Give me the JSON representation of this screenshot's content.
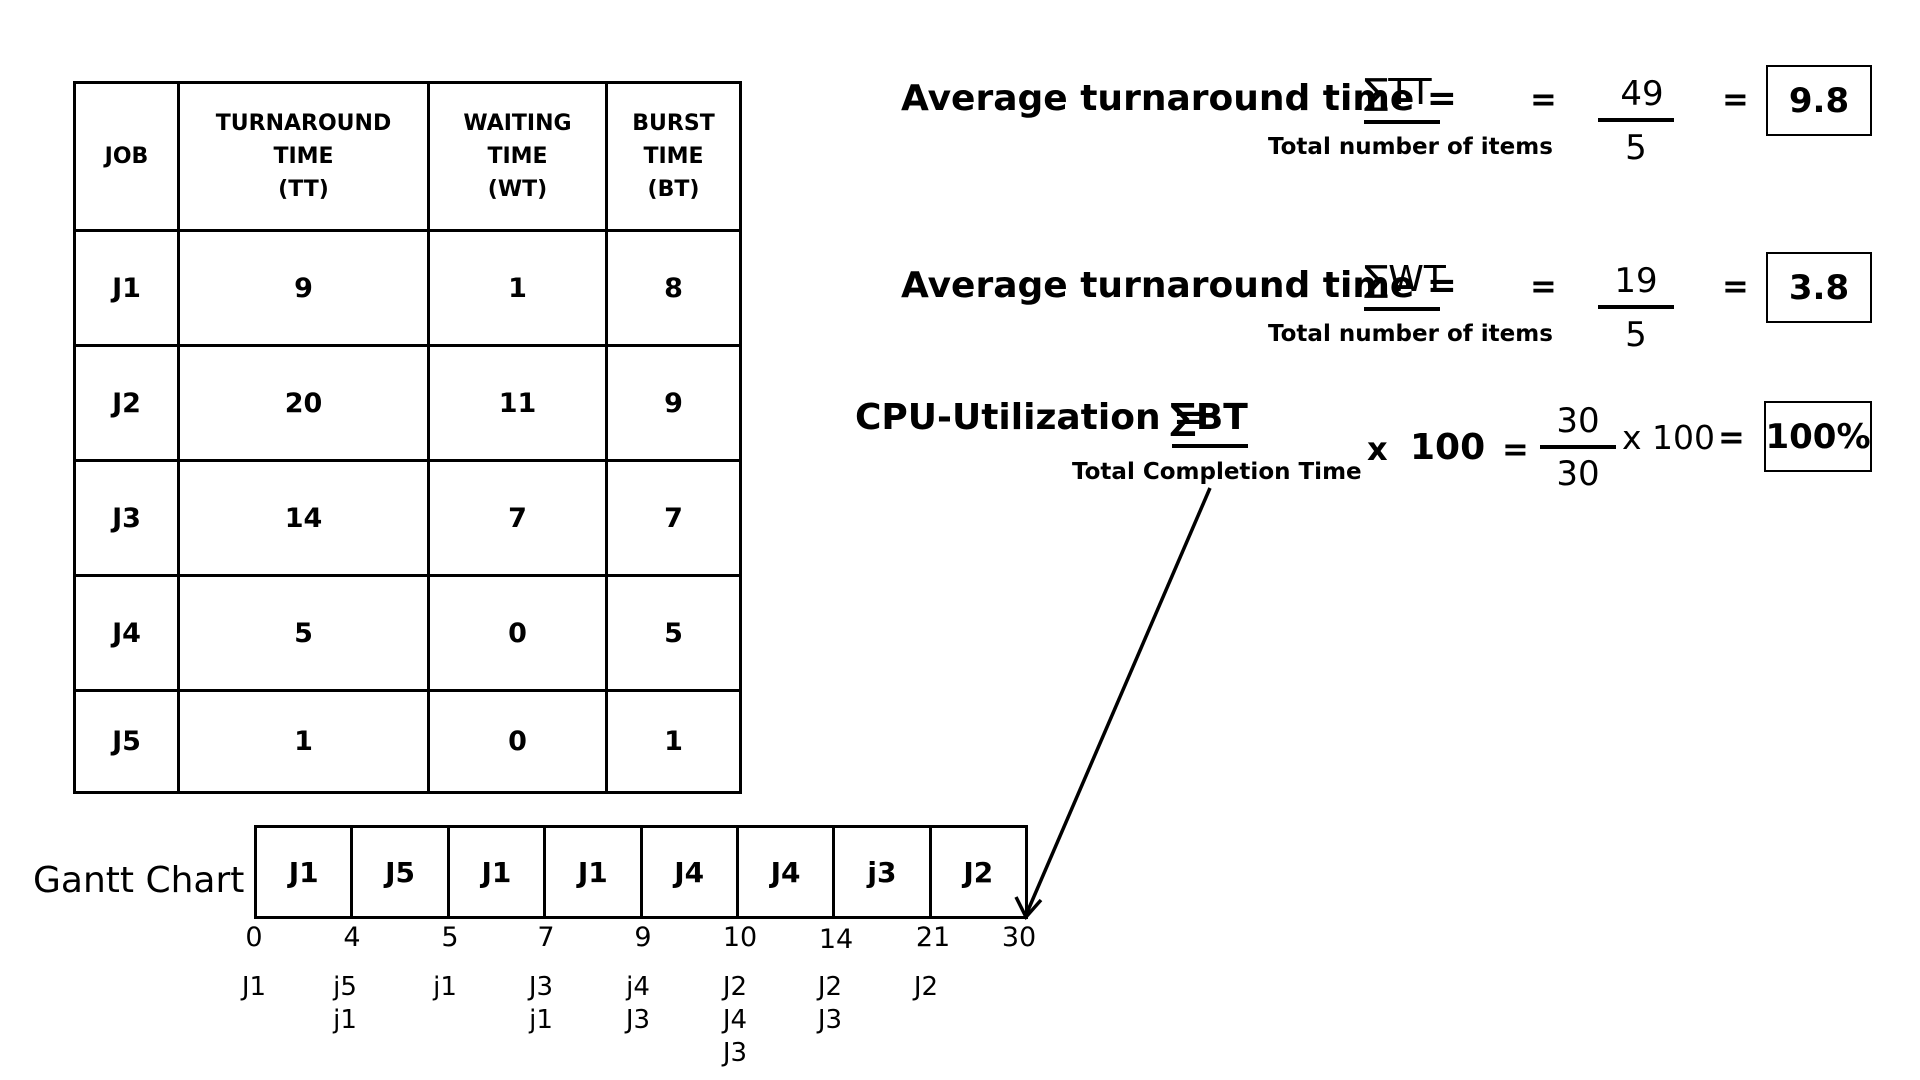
{
  "table": {
    "headers": [
      [
        "JOB"
      ],
      [
        "TURNAROUND",
        "TIME",
        "(TT)"
      ],
      [
        "WAITING",
        "TIME",
        "(WT)"
      ],
      [
        "BURST",
        "TIME",
        "(BT)"
      ]
    ],
    "rows": [
      [
        "J1",
        "9",
        "1",
        "8"
      ],
      [
        "J2",
        "20",
        "11",
        "9"
      ],
      [
        "J3",
        "14",
        "7",
        "7"
      ],
      [
        "J4",
        "5",
        "0",
        "5"
      ],
      [
        "J5",
        "1",
        "0",
        "1"
      ]
    ]
  },
  "formulas": {
    "tt": {
      "label": "Average turnaround time =",
      "sigma_term": "∑TT",
      "denominator_label": "Total number of items",
      "equals": "=",
      "numerator": "49",
      "denominator": "5",
      "equals2": "=",
      "result": "9.8"
    },
    "wt": {
      "label": "Average turnaround time =",
      "sigma_term": "∑WT",
      "denominator_label": "Total number of items",
      "equals": "=",
      "numerator": "19",
      "denominator": "5",
      "equals2": "=",
      "result": "3.8"
    },
    "cpu": {
      "label": "CPU-Utilization =",
      "sigma_term": "∑BT",
      "denominator_label": "Total Completion Time",
      "times": "x",
      "hundred": "100",
      "equals": "=",
      "numerator": "30",
      "denominator": "30",
      "times_100": "x 100",
      "equals2": "=",
      "result": "100%"
    }
  },
  "gantt": {
    "title": "Gantt Chart",
    "cells": [
      "J1",
      "J5",
      "J1",
      "J1",
      "J4",
      "J4",
      "j3",
      "J2"
    ],
    "ticks": [
      "0",
      "4",
      "5",
      "7",
      "9",
      "10",
      "14",
      "21",
      "30"
    ],
    "ready_queue": [
      [
        "J1"
      ],
      [
        "j5",
        "j1"
      ],
      [
        "j1"
      ],
      [
        "J3",
        "j1"
      ],
      [
        "j4",
        "J3"
      ],
      [
        "J2",
        "J4",
        "J3"
      ],
      [
        "J2",
        "J3"
      ],
      [
        "J2"
      ]
    ]
  }
}
